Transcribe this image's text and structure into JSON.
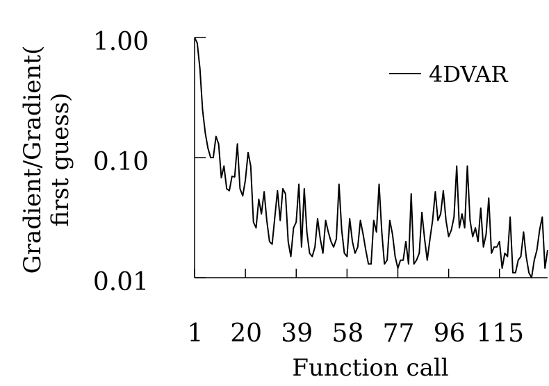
{
  "chart_data": {
    "type": "line",
    "xlabel": "Function call",
    "ylabel_lines": [
      "Gradient/Gradient(",
      "first guess)"
    ],
    "y_scale": "log",
    "ylim": [
      0.01,
      1.0
    ],
    "y_ticks": [
      1.0,
      0.1,
      0.01
    ],
    "y_tick_labels": [
      "1.00",
      "0.10",
      "0.01"
    ],
    "xlim": [
      1,
      133
    ],
    "x_ticks": [
      1,
      20,
      39,
      58,
      77,
      96,
      115
    ],
    "x_tick_labels": [
      "1",
      "20",
      "39",
      "58",
      "77",
      "96",
      "115"
    ],
    "legend_position": "top-right",
    "line_color": "#000000",
    "series": [
      {
        "name": "4DVAR",
        "x": [
          1,
          2,
          3,
          4,
          5,
          6,
          7,
          8,
          9,
          10,
          11,
          12,
          13,
          14,
          15,
          16,
          17,
          18,
          19,
          20,
          21,
          22,
          23,
          24,
          25,
          26,
          27,
          28,
          29,
          30,
          31,
          32,
          33,
          34,
          35,
          36,
          37,
          38,
          39,
          40,
          41,
          42,
          43,
          44,
          45,
          46,
          47,
          48,
          49,
          50,
          51,
          52,
          53,
          54,
          55,
          56,
          57,
          58,
          59,
          60,
          61,
          62,
          63,
          64,
          65,
          66,
          67,
          68,
          69,
          70,
          71,
          72,
          73,
          74,
          75,
          76,
          77,
          78,
          79,
          80,
          81,
          82,
          83,
          84,
          85,
          86,
          87,
          88,
          89,
          90,
          91,
          92,
          93,
          94,
          95,
          96,
          97,
          98,
          99,
          100,
          101,
          102,
          103,
          104,
          105,
          106,
          107,
          108,
          109,
          110,
          111,
          112,
          113,
          114,
          115,
          116,
          117,
          118,
          119,
          120,
          121,
          122,
          123,
          124,
          125,
          126,
          127,
          128,
          129,
          130,
          131,
          132,
          133
        ],
        "values": [
          1.0,
          0.9,
          0.55,
          0.25,
          0.16,
          0.12,
          0.1,
          0.1,
          0.15,
          0.13,
          0.068,
          0.085,
          0.055,
          0.053,
          0.07,
          0.069,
          0.13,
          0.055,
          0.048,
          0.065,
          0.11,
          0.085,
          0.029,
          0.026,
          0.045,
          0.034,
          0.052,
          0.03,
          0.02,
          0.019,
          0.032,
          0.053,
          0.03,
          0.055,
          0.05,
          0.02,
          0.015,
          0.026,
          0.029,
          0.06,
          0.018,
          0.055,
          0.024,
          0.016,
          0.015,
          0.018,
          0.031,
          0.021,
          0.016,
          0.03,
          0.024,
          0.02,
          0.018,
          0.021,
          0.06,
          0.025,
          0.016,
          0.015,
          0.031,
          0.02,
          0.016,
          0.018,
          0.03,
          0.023,
          0.017,
          0.013,
          0.013,
          0.03,
          0.024,
          0.06,
          0.024,
          0.013,
          0.014,
          0.03,
          0.023,
          0.015,
          0.012,
          0.014,
          0.014,
          0.02,
          0.013,
          0.05,
          0.013,
          0.014,
          0.016,
          0.035,
          0.021,
          0.014,
          0.021,
          0.03,
          0.052,
          0.03,
          0.034,
          0.053,
          0.03,
          0.022,
          0.025,
          0.032,
          0.085,
          0.026,
          0.034,
          0.026,
          0.085,
          0.03,
          0.022,
          0.026,
          0.02,
          0.038,
          0.018,
          0.023,
          0.046,
          0.016,
          0.018,
          0.018,
          0.02,
          0.012,
          0.016,
          0.015,
          0.032,
          0.011,
          0.011,
          0.014,
          0.015,
          0.024,
          0.015,
          0.011,
          0.01,
          0.014,
          0.017,
          0.025,
          0.032,
          0.012,
          0.017
        ]
      }
    ]
  }
}
